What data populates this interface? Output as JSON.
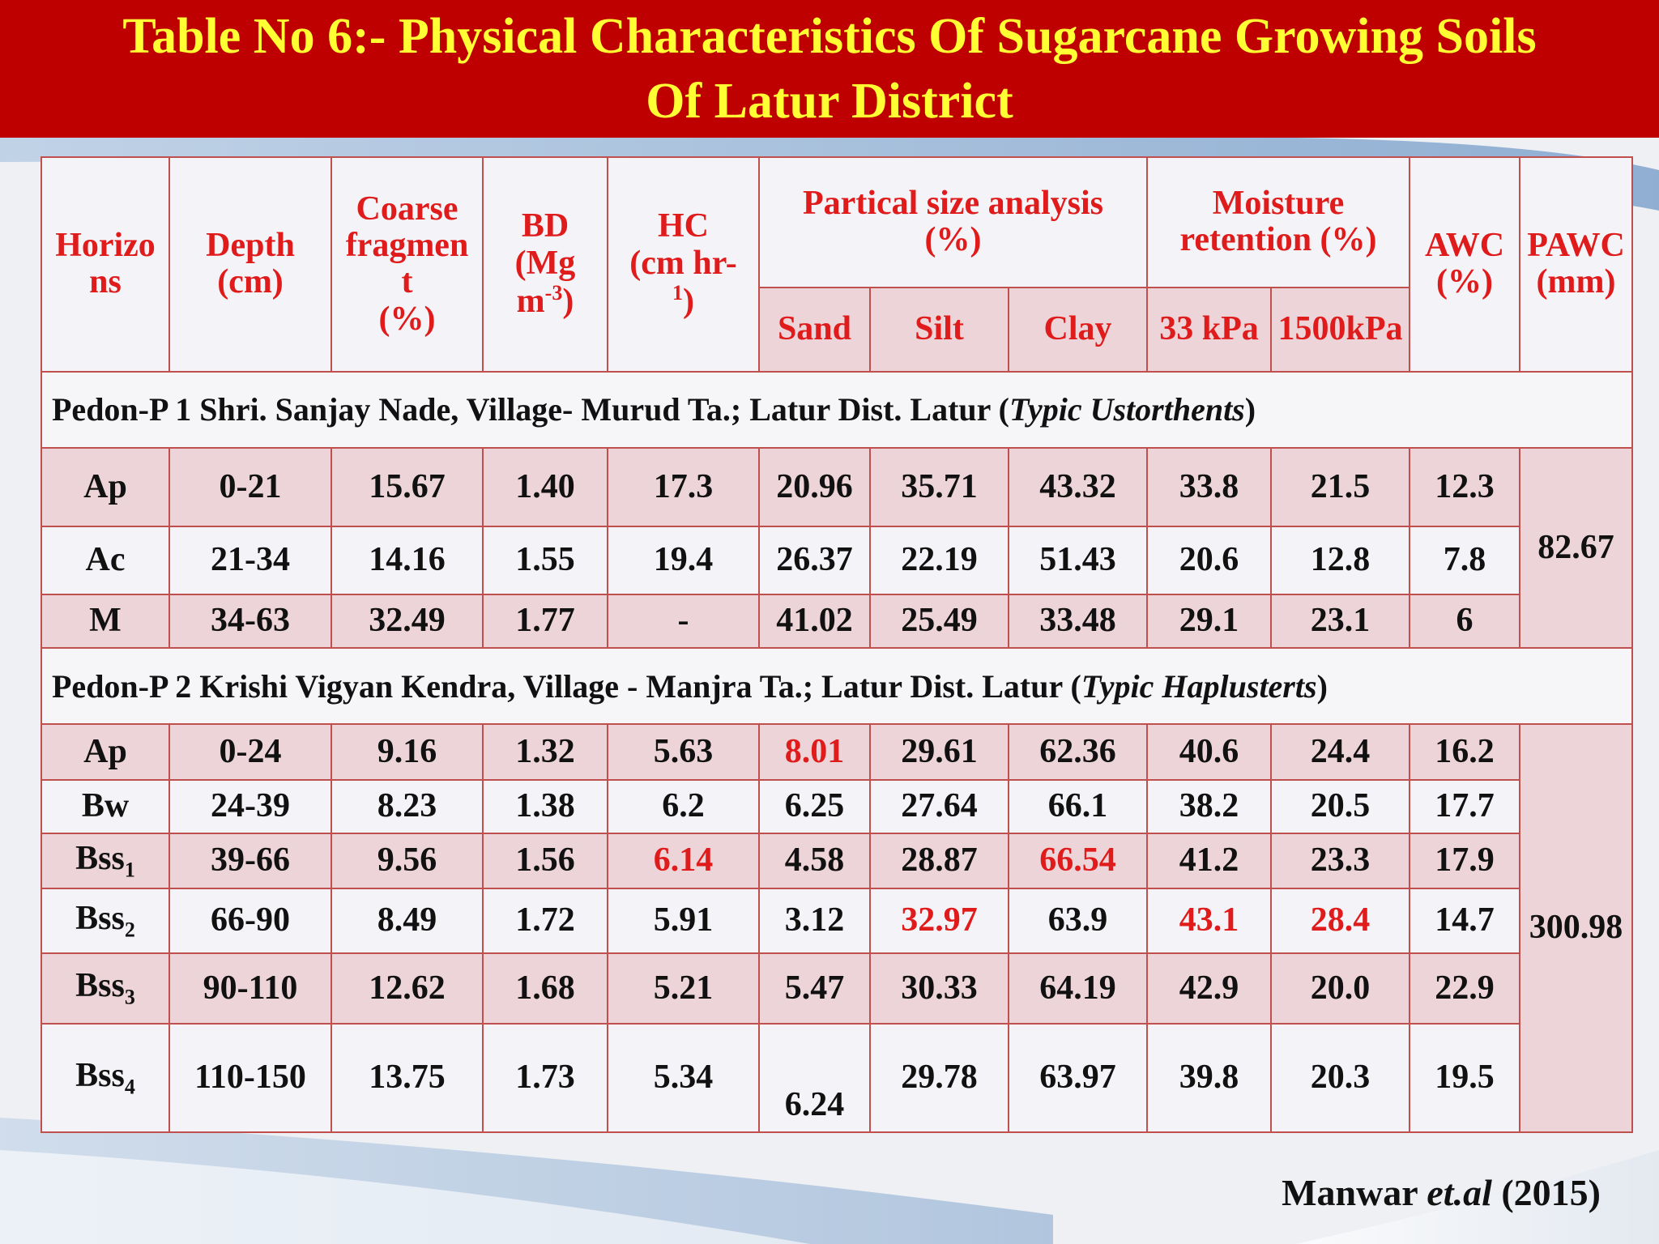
{
  "title": {
    "line1": "Table No 6:- Physical Characteristics Of Sugarcane Growing Soils",
    "line2": "Of Latur District"
  },
  "headers": {
    "horizons": [
      "Horizo",
      "ns"
    ],
    "depth": [
      "Depth",
      "(cm)"
    ],
    "coarse": [
      "Coarse",
      "fragmen",
      "t",
      "(%)"
    ],
    "bd": [
      "BD",
      "(Mg",
      "m",
      "-3",
      ")"
    ],
    "hc": [
      "HC",
      "(cm hr",
      "-",
      "1",
      ")"
    ],
    "particle": [
      "Partical size analysis",
      "(%)"
    ],
    "moisture": [
      "Moisture",
      "retention (%)"
    ],
    "awc": [
      "AWC",
      "(%)"
    ],
    "pawc": [
      "PAWC",
      "(mm)"
    ],
    "sub": [
      "Sand",
      "Silt",
      "Clay",
      "33 kPa",
      "1500kPa"
    ]
  },
  "pedon1": {
    "label": "Pedon-P 1 Shri. Sanjay Nade, Village- Murud Ta.; Latur Dist. Latur (",
    "taxon": "Typic Ustorthents",
    "close": ")",
    "pawc": "82.67",
    "rows": [
      {
        "h": "Ap",
        "d": "0-21",
        "cf": "15.67",
        "bd": "1.40",
        "hc": "17.3",
        "sand": "20.96",
        "silt": "35.71",
        "clay": "43.32",
        "m33": "33.8",
        "m1500": "21.5",
        "awc": "12.3"
      },
      {
        "h": "Ac",
        "d": "21-34",
        "cf": "14.16",
        "bd": "1.55",
        "hc": "19.4",
        "sand": "26.37",
        "silt": "22.19",
        "clay": "51.43",
        "m33": "20.6",
        "m1500": "12.8",
        "awc": "7.8"
      },
      {
        "h": "M",
        "d": "34-63",
        "cf": "32.49",
        "bd": "1.77",
        "hc": "-",
        "sand": "41.02",
        "silt": "25.49",
        "clay": "33.48",
        "m33": "29.1",
        "m1500": "23.1",
        "awc": "6"
      }
    ]
  },
  "pedon2": {
    "label": "Pedon-P 2 Krishi Vigyan Kendra, Village - Manjra Ta.; Latur Dist. Latur (",
    "taxon": "Typic Haplusterts",
    "close": ")",
    "pawc": "300.98",
    "rows": [
      {
        "h": "Ap",
        "hs": "",
        "d": "0-24",
        "cf": "9.16",
        "bd": "1.32",
        "hc": "5.63",
        "sand": "8.01",
        "silt": "29.61",
        "clay": "62.36",
        "m33": "40.6",
        "m1500": "24.4",
        "awc": "16.2"
      },
      {
        "h": "Bw",
        "hs": "",
        "d": "24-39",
        "cf": "8.23",
        "bd": "1.38",
        "hc": "6.2",
        "sand": "6.25",
        "silt": "27.64",
        "clay": "66.1",
        "m33": "38.2",
        "m1500": "20.5",
        "awc": "17.7"
      },
      {
        "h": "Bss",
        "hs": "1",
        "d": "39-66",
        "cf": "9.56",
        "bd": "1.56",
        "hc": "6.14",
        "sand": "4.58",
        "silt": "28.87",
        "clay": "66.54",
        "m33": "41.2",
        "m1500": "23.3",
        "awc": "17.9"
      },
      {
        "h": "Bss",
        "hs": "2",
        "d": "66-90",
        "cf": "8.49",
        "bd": "1.72",
        "hc": "5.91",
        "sand": "3.12",
        "silt": "32.97",
        "clay": "63.9",
        "m33": "43.1",
        "m1500": "28.4",
        "awc": "14.7"
      },
      {
        "h": "Bss",
        "hs": "3",
        "d": "90-110",
        "cf": "12.62",
        "bd": "1.68",
        "hc": "5.21",
        "sand": "5.47",
        "silt": "30.33",
        "clay": "64.19",
        "m33": "42.9",
        "m1500": "20.0",
        "awc": "22.9"
      },
      {
        "h": "Bss",
        "hs": "4",
        "d": "110-150",
        "cf": "13.75",
        "bd": "1.73",
        "hc": "5.34",
        "sand": "6.24",
        "silt": "29.78",
        "clay": "63.97",
        "m33": "39.8",
        "m1500": "20.3",
        "awc": "19.5"
      }
    ]
  },
  "credit": {
    "author": "Manwar ",
    "etal": "et.al",
    "year": " (2015)"
  },
  "colors": {
    "title_bg": "#bf0000",
    "title_text": "#ffff33",
    "header_text": "#e01b1b",
    "highlight": "#e01b1b",
    "pink_row": "#ecd4d8",
    "border": "#c0504d"
  }
}
